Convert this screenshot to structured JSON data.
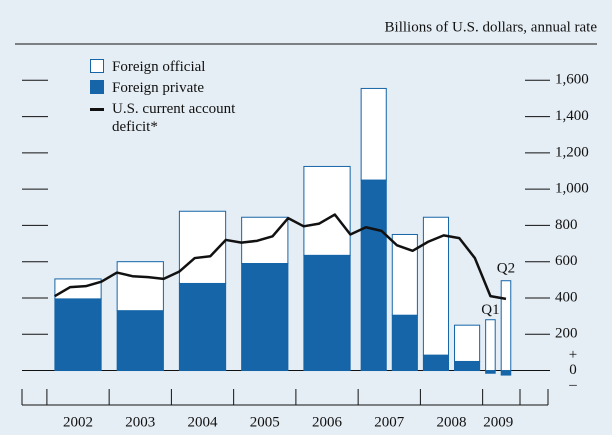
{
  "chart_data": {
    "type": "bar-line",
    "unit_label": "Billions of U.S. dollars, annual rate",
    "xlim": [
      2001.6,
      2010.05
    ],
    "xticks": [
      2002,
      2003,
      2004,
      2005,
      2006,
      2007,
      2008,
      2009,
      2009.6
    ],
    "year_labels": [
      {
        "value": 2002.5,
        "label": "2002"
      },
      {
        "value": 2003.5,
        "label": "2003"
      },
      {
        "value": 2004.5,
        "label": "2004"
      },
      {
        "value": 2005.5,
        "label": "2005"
      },
      {
        "value": 2006.5,
        "label": "2006"
      },
      {
        "value": 2007.5,
        "label": "2007"
      },
      {
        "value": 2008.5,
        "label": "2008"
      },
      {
        "value": 2009.25,
        "label": "2009"
      }
    ],
    "ylim": [
      -190,
      1800
    ],
    "yticks": [
      0,
      200,
      400,
      600,
      800,
      {
        "value": 1000,
        "label": "1,000"
      },
      {
        "value": 1200,
        "label": "1,200"
      },
      {
        "value": 1400,
        "label": "1,400"
      },
      {
        "value": 1600,
        "label": "1,600"
      }
    ],
    "zero_signs": [
      "+",
      "–"
    ],
    "periods": [
      [
        2002,
        2003
      ],
      [
        2003,
        2004
      ],
      [
        2004,
        2005
      ],
      [
        2005,
        2006
      ],
      [
        2006,
        2007
      ],
      [
        2007,
        2007.5
      ],
      [
        2007.5,
        2008
      ],
      [
        2008,
        2008.5
      ],
      [
        2008.5,
        2009
      ],
      [
        2009,
        2009.25
      ],
      [
        2009.25,
        2009.5
      ]
    ],
    "series": [
      {
        "name": "Foreign private",
        "color": "#1565a8",
        "values": [
          395,
          330,
          480,
          590,
          635,
          1050,
          305,
          85,
          50,
          -15,
          -25
        ]
      },
      {
        "name": "Foreign official",
        "color": "#ffffff",
        "values": [
          110,
          270,
          398,
          255,
          490,
          505,
          445,
          760,
          200,
          280,
          495
        ]
      }
    ],
    "line": {
      "name": "U.S. current account deficit*",
      "color": "#111111",
      "x": [
        2002.125,
        2002.375,
        2002.625,
        2002.875,
        2003.125,
        2003.375,
        2003.625,
        2003.875,
        2004.125,
        2004.375,
        2004.625,
        2004.875,
        2005.125,
        2005.375,
        2005.625,
        2005.875,
        2006.125,
        2006.375,
        2006.625,
        2006.875,
        2007.125,
        2007.375,
        2007.625,
        2007.875,
        2008.125,
        2008.375,
        2008.625,
        2008.875,
        2009.125,
        2009.375
      ],
      "values": [
        410,
        460,
        465,
        490,
        540,
        520,
        515,
        505,
        545,
        620,
        630,
        720,
        705,
        715,
        740,
        840,
        795,
        810,
        860,
        750,
        790,
        770,
        690,
        660,
        710,
        745,
        730,
        620,
        410,
        395
      ]
    },
    "annotations": [
      {
        "text": "Q1",
        "x": 2009.125,
        "y": 330
      },
      {
        "text": "Q2",
        "x": 2009.375,
        "y": 560
      }
    ]
  }
}
